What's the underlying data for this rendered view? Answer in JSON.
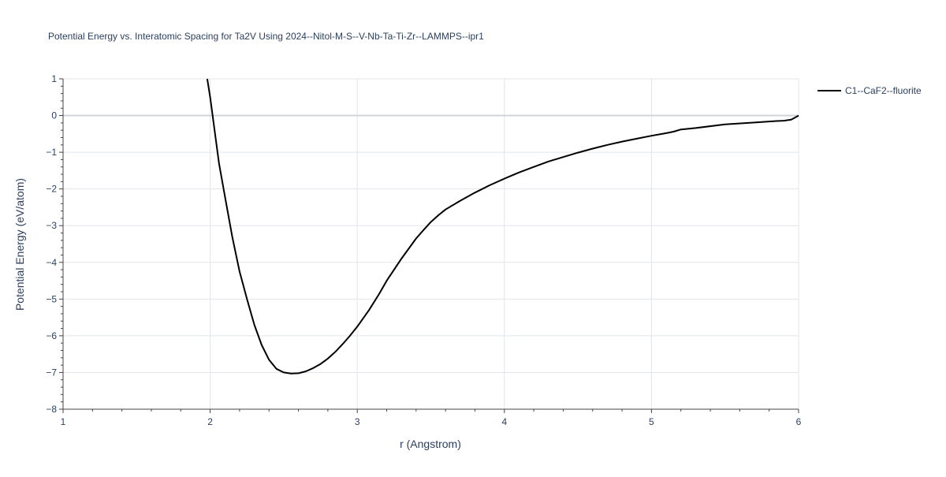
{
  "chart_data": {
    "type": "line",
    "title": "Potential Energy vs. Interatomic Spacing for Ta2V Using 2024--Nitol-M-S--V-Nb-Ta-Ti-Zr--LAMMPS--ipr1",
    "xlabel": "r (Angstrom)",
    "ylabel": "Potential Energy (eV/atom)",
    "xlim": [
      1,
      6
    ],
    "ylim": [
      -8,
      1
    ],
    "x_ticks": [
      1,
      2,
      3,
      4,
      5,
      6
    ],
    "x_tick_labels": [
      "1",
      "2",
      "3",
      "4",
      "5",
      "6"
    ],
    "y_ticks": [
      1,
      0,
      -1,
      -2,
      -3,
      -4,
      -5,
      -6,
      -7,
      -8
    ],
    "y_tick_labels": [
      "1",
      "0",
      "−1",
      "−2",
      "−3",
      "−4",
      "−5",
      "−6",
      "−7",
      "−8"
    ],
    "grid": true,
    "legend_position": "top-right",
    "series": [
      {
        "name": "C1--CaF2--fluorite",
        "color": "#000000",
        "x": [
          1.98,
          2.0,
          2.03,
          2.06,
          2.1,
          2.15,
          2.2,
          2.25,
          2.3,
          2.35,
          2.4,
          2.45,
          2.5,
          2.55,
          2.6,
          2.65,
          2.7,
          2.75,
          2.8,
          2.85,
          2.9,
          2.95,
          3.0,
          3.08,
          3.15,
          3.2,
          3.3,
          3.4,
          3.45,
          3.5,
          3.55,
          3.6,
          3.7,
          3.8,
          3.9,
          4.0,
          4.1,
          4.2,
          4.3,
          4.4,
          4.5,
          4.6,
          4.7,
          4.8,
          4.9,
          5.0,
          5.1,
          5.15,
          5.2,
          5.3,
          5.5,
          5.7,
          5.85,
          5.9,
          5.95,
          6.0
        ],
        "y": [
          1.0,
          0.5,
          -0.4,
          -1.3,
          -2.2,
          -3.3,
          -4.25,
          -5.0,
          -5.7,
          -6.25,
          -6.65,
          -6.9,
          -7.0,
          -7.03,
          -7.02,
          -6.97,
          -6.88,
          -6.77,
          -6.62,
          -6.44,
          -6.23,
          -6.0,
          -5.75,
          -5.3,
          -4.85,
          -4.5,
          -3.9,
          -3.35,
          -3.12,
          -2.9,
          -2.72,
          -2.56,
          -2.32,
          -2.1,
          -1.9,
          -1.72,
          -1.55,
          -1.4,
          -1.25,
          -1.13,
          -1.01,
          -0.9,
          -0.8,
          -0.71,
          -0.63,
          -0.55,
          -0.48,
          -0.44,
          -0.38,
          -0.34,
          -0.24,
          -0.19,
          -0.15,
          -0.14,
          -0.11,
          0.0
        ]
      }
    ]
  }
}
